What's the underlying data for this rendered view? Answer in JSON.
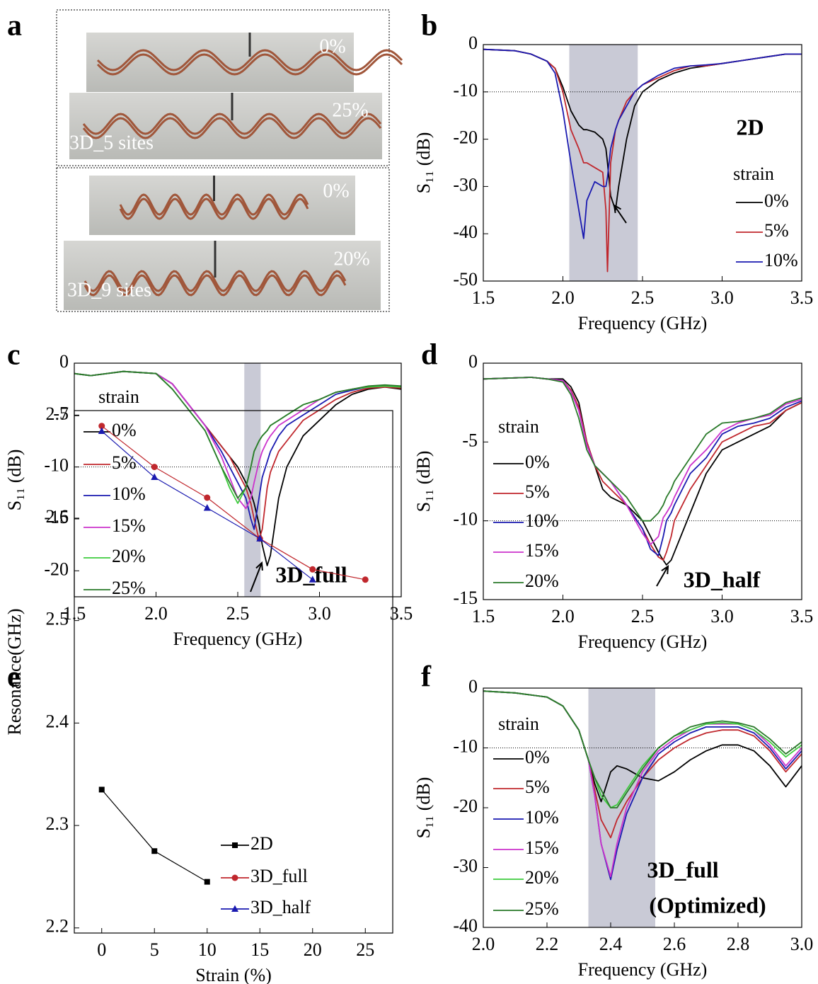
{
  "panel_a": {
    "label": "a",
    "photos": [
      {
        "labels": [
          "0%"
        ]
      },
      {
        "labels": [
          "25%",
          "3D_5 sites"
        ]
      },
      {
        "labels": [
          "0%"
        ]
      },
      {
        "labels": [
          "20%",
          "3D_9 sites"
        ]
      }
    ]
  },
  "chart_data": [
    {
      "type": "line",
      "label": "b",
      "x_label": "Frequency (GHz)",
      "y_label": "S₁₁ (dB)",
      "xlim": [
        1.5,
        3.5
      ],
      "ylim": [
        -50,
        0
      ],
      "xticks": [
        1.5,
        {
          "value": 2,
          "label": "2.0"
        },
        2.5,
        {
          "value": 3,
          "label": "3.0"
        },
        3.5
      ],
      "yticks": [
        0,
        -10,
        -20,
        -30,
        -40,
        -50
      ],
      "highlight_span": [
        2.04,
        2.47
      ],
      "reference_line": -10,
      "annotations": [
        "2D"
      ],
      "legend_title": "strain",
      "legend": "lower right",
      "x": [
        1.5,
        1.7,
        1.8,
        1.9,
        1.95,
        2.0,
        2.05,
        2.1,
        2.13,
        2.15,
        2.2,
        2.25,
        2.27,
        2.28,
        2.3,
        2.33,
        2.35,
        2.4,
        2.45,
        2.5,
        2.6,
        2.7,
        2.8,
        2.9,
        3.0,
        3.1,
        3.2,
        3.3,
        3.4,
        3.5
      ],
      "series": [
        {
          "name": "0%",
          "color": "#000000",
          "values": [
            -1,
            -1.3,
            -2,
            -3.5,
            -5,
            -9,
            -14,
            -17,
            -18,
            -18,
            -18.5,
            -20,
            -22,
            -25,
            -32,
            -35,
            -30,
            -20,
            -13,
            -10,
            -7.5,
            -6,
            -5,
            -4.5,
            -4,
            -3.5,
            -3,
            -2.5,
            -2,
            -2
          ]
        },
        {
          "name": "5%",
          "color": "#c0272d",
          "values": [
            -1,
            -1.3,
            -2,
            -3.5,
            -5,
            -10,
            -18,
            -22,
            -25,
            -25,
            -26,
            -27,
            -35,
            -48,
            -25,
            -18,
            -16,
            -12,
            -10,
            -8.5,
            -7,
            -5.5,
            -4.5,
            -4.5,
            -4,
            -3.5,
            -3,
            -2.5,
            -2,
            -2
          ]
        },
        {
          "name": "10%",
          "color": "#1a1ab0",
          "values": [
            -1,
            -1.3,
            -2,
            -3.5,
            -6,
            -14,
            -25,
            -35,
            -41,
            -33,
            -29,
            -30,
            -30,
            -28,
            -22,
            -18,
            -16,
            -13,
            -10,
            -8.5,
            -6.5,
            -5,
            -4.5,
            -4.3,
            -4,
            -3.5,
            -3,
            -2.5,
            -2,
            -2
          ]
        }
      ]
    },
    {
      "type": "line",
      "label": "c",
      "x_label": "Frequency (GHz)",
      "y_label": "S₁₁ (dB)",
      "xlim": [
        1.5,
        3.5
      ],
      "ylim": [
        -22.5,
        0
      ],
      "xticks": [
        1.5,
        {
          "value": 2,
          "label": "2.0"
        },
        2.5,
        {
          "value": 3,
          "label": "3.0"
        },
        3.5
      ],
      "yticks": [
        0,
        -5,
        -10,
        -15,
        -20
      ],
      "highlight_span": [
        2.54,
        2.64
      ],
      "reference_line": -10,
      "annotations": [
        "3D_full"
      ],
      "legend_title": "strain",
      "legend": "upper left",
      "x": [
        1.5,
        1.6,
        1.8,
        2.0,
        2.1,
        2.2,
        2.3,
        2.4,
        2.45,
        2.5,
        2.55,
        2.58,
        2.6,
        2.63,
        2.65,
        2.68,
        2.7,
        2.75,
        2.8,
        2.9,
        3.0,
        3.1,
        3.2,
        3.3,
        3.4,
        3.5
      ],
      "series": [
        {
          "name": "0%",
          "color": "#000000",
          "values": [
            -1,
            -1.2,
            -0.8,
            -1,
            -2,
            -4,
            -6,
            -8,
            -9,
            -10,
            -11.5,
            -12.5,
            -13.5,
            -15.5,
            -17.5,
            -19.5,
            -18.5,
            -13,
            -10,
            -7,
            -5.5,
            -4,
            -3,
            -2.5,
            -2.3,
            -2.5
          ]
        },
        {
          "name": "5%",
          "color": "#c0272d",
          "values": [
            -1,
            -1.2,
            -0.8,
            -1,
            -2,
            -4,
            -6,
            -8,
            -9,
            -10.5,
            -12,
            -13.5,
            -15,
            -17,
            -16,
            -12,
            -10.5,
            -8.5,
            -7.5,
            -5.5,
            -4.5,
            -3.5,
            -2.8,
            -2.4,
            -2.3,
            -2.4
          ]
        },
        {
          "name": "10%",
          "color": "#1a1ab0",
          "values": [
            -1,
            -1.2,
            -0.8,
            -1,
            -2,
            -4,
            -6,
            -8.5,
            -10,
            -11.5,
            -13,
            -15,
            -16,
            -13,
            -11,
            -9.5,
            -8.5,
            -7,
            -6,
            -5,
            -4,
            -3,
            -2.6,
            -2.3,
            -2.2,
            -2.3
          ]
        },
        {
          "name": "15%",
          "color": "#cc33cc",
          "values": [
            -1,
            -1.2,
            -0.8,
            -1,
            -2,
            -4,
            -6,
            -9,
            -11,
            -13,
            -14,
            -13,
            -11.5,
            -9.5,
            -8.5,
            -7.5,
            -7,
            -6,
            -5.5,
            -4.5,
            -3.5,
            -2.8,
            -2.5,
            -2.3,
            -2.2,
            -2.3
          ]
        },
        {
          "name": "20%",
          "color": "#3dcc3d",
          "values": [
            -1,
            -1.2,
            -0.8,
            -1,
            -2.5,
            -4.5,
            -6.5,
            -10,
            -12,
            -13.5,
            -12,
            -10,
            -8.5,
            -7.5,
            -7,
            -6.5,
            -6,
            -5.5,
            -5,
            -4,
            -3.5,
            -2.8,
            -2.5,
            -2.3,
            -2.2,
            -2.3
          ]
        },
        {
          "name": "25%",
          "color": "#2a7a2a",
          "values": [
            -1,
            -1.2,
            -0.8,
            -1,
            -2.5,
            -4.5,
            -6.5,
            -10,
            -11.5,
            -13,
            -12,
            -10,
            -8.5,
            -7.5,
            -7,
            -6.5,
            -6,
            -5.5,
            -5,
            -4,
            -3.5,
            -2.8,
            -2.5,
            -2.2,
            -2.1,
            -2.2
          ]
        }
      ]
    },
    {
      "type": "line",
      "label": "d",
      "x_label": "Frequency (GHz)",
      "y_label": "S₁₁ (dB)",
      "xlim": [
        1.5,
        3.5
      ],
      "ylim": [
        -15,
        0
      ],
      "xticks": [
        1.5,
        {
          "value": 2,
          "label": "2.0"
        },
        2.5,
        {
          "value": 3,
          "label": "3.0"
        },
        3.5
      ],
      "yticks": [
        0,
        -5,
        -10,
        -15
      ],
      "reference_line": -10,
      "annotations": [
        "3D_half"
      ],
      "legend_title": "strain",
      "legend": "left",
      "x": [
        1.5,
        1.8,
        1.9,
        2.0,
        2.05,
        2.1,
        2.15,
        2.2,
        2.25,
        2.3,
        2.4,
        2.5,
        2.55,
        2.6,
        2.63,
        2.65,
        2.68,
        2.7,
        2.8,
        2.9,
        3.0,
        3.1,
        3.2,
        3.3,
        3.4,
        3.5
      ],
      "series": [
        {
          "name": "0%",
          "color": "#000000",
          "values": [
            -1,
            -0.9,
            -1,
            -1,
            -1.5,
            -2.5,
            -5,
            -6.5,
            -8,
            -8.5,
            -9,
            -10,
            -11,
            -12,
            -12.5,
            -12.8,
            -12.5,
            -12,
            -9.5,
            -7,
            -5.5,
            -5,
            -4.5,
            -4,
            -3,
            -2.5
          ]
        },
        {
          "name": "5%",
          "color": "#c0272d",
          "values": [
            -1,
            -0.9,
            -1,
            -1.1,
            -1.7,
            -2.8,
            -5,
            -6.5,
            -7.5,
            -8,
            -9,
            -10.5,
            -11.5,
            -12.3,
            -12.5,
            -12,
            -11,
            -10,
            -8,
            -6.5,
            -5,
            -4.5,
            -4,
            -3.8,
            -3,
            -2.5
          ]
        },
        {
          "name": "10%",
          "color": "#1a1ab0",
          "values": [
            -1,
            -0.9,
            -1,
            -1.1,
            -1.8,
            -3,
            -5.2,
            -6.5,
            -7,
            -7.5,
            -9,
            -10.5,
            -11.8,
            -12.2,
            -11,
            -10,
            -9.5,
            -9,
            -7,
            -6,
            -4.5,
            -4,
            -3.8,
            -3.5,
            -2.8,
            -2.4
          ]
        },
        {
          "name": "15%",
          "color": "#cc33cc",
          "values": [
            -1,
            -0.9,
            -1,
            -1.1,
            -1.8,
            -3,
            -5.2,
            -6.5,
            -7,
            -7.5,
            -9,
            -10.8,
            -11.5,
            -11,
            -9.8,
            -9.5,
            -9,
            -8.5,
            -6.5,
            -5.5,
            -4.3,
            -3.8,
            -3.5,
            -3.3,
            -2.6,
            -2.3
          ]
        },
        {
          "name": "20%",
          "color": "#2a7a2a",
          "values": [
            -1,
            -0.9,
            -1,
            -1.2,
            -2,
            -3.5,
            -5.5,
            -6.5,
            -7,
            -7.5,
            -8.5,
            -10,
            -10,
            -9.5,
            -9,
            -8.5,
            -8,
            -7.5,
            -6,
            -4.5,
            -3.8,
            -3.7,
            -3.5,
            -3.2,
            -2.5,
            -2.2
          ]
        }
      ]
    },
    {
      "type": "line",
      "label": "e",
      "x_label": "Strain (%)",
      "y_label": "Resonance(GHz)",
      "xlim": [
        -2.6,
        27.6
      ],
      "ylim": [
        2.195,
        2.705
      ],
      "xticks": [
        0,
        5,
        10,
        15,
        20,
        25
      ],
      "yticks": [
        2.2,
        2.3,
        2.4,
        2.5,
        2.6,
        2.7
      ],
      "legend": "lower center",
      "markers": true,
      "x": [
        0,
        5,
        10,
        15,
        20,
        25
      ],
      "series": [
        {
          "name": "2D",
          "color": "#000000",
          "marker": "square",
          "values": [
            2.335,
            2.275,
            2.245,
            null,
            null,
            null
          ]
        },
        {
          "name": "3D_full",
          "color": "#c0272d",
          "marker": "circle",
          "values": [
            2.69,
            2.65,
            2.62,
            2.58,
            2.55,
            2.54
          ]
        },
        {
          "name": "3D_half",
          "color": "#1a1ab0",
          "marker": "triangle",
          "values": [
            2.685,
            2.64,
            2.61,
            2.58,
            2.54,
            null
          ]
        }
      ]
    },
    {
      "type": "line",
      "label": "f",
      "x_label": "Frequency (GHz)",
      "y_label": "S₁₁ (dB)",
      "xlim": [
        2,
        3
      ],
      "ylim": [
        -40,
        0
      ],
      "xticks": [
        {
          "value": 2,
          "label": "2.0"
        },
        2.2,
        2.4,
        2.6,
        2.8,
        {
          "value": 3,
          "label": "3.0"
        }
      ],
      "yticks": [
        0,
        -10,
        -20,
        -30,
        -40
      ],
      "highlight_span": [
        2.33,
        2.54
      ],
      "reference_line": -10,
      "annotations": [
        "3D_full",
        "(Optimized)"
      ],
      "legend_title": "strain",
      "legend": "left",
      "x": [
        2.0,
        2.1,
        2.2,
        2.25,
        2.3,
        2.33,
        2.35,
        2.37,
        2.4,
        2.42,
        2.45,
        2.5,
        2.55,
        2.6,
        2.65,
        2.7,
        2.75,
        2.8,
        2.85,
        2.9,
        2.95,
        3.0
      ],
      "series": [
        {
          "name": "0%",
          "color": "#000000",
          "values": [
            -0.5,
            -0.8,
            -1.5,
            -3,
            -7,
            -12,
            -16,
            -19,
            -14,
            -13,
            -13.5,
            -15,
            -15.5,
            -14,
            -12,
            -10.5,
            -9.5,
            -9.5,
            -10.5,
            -13,
            -16.5,
            -13
          ]
        },
        {
          "name": "5%",
          "color": "#c0272d",
          "values": [
            -0.5,
            -0.8,
            -1.5,
            -3,
            -7,
            -12,
            -17,
            -22,
            -25,
            -22,
            -19,
            -15,
            -12,
            -10,
            -8.5,
            -7.5,
            -7,
            -7,
            -8,
            -10.5,
            -14,
            -11
          ]
        },
        {
          "name": "10%",
          "color": "#1a1ab0",
          "values": [
            -0.5,
            -0.8,
            -1.5,
            -3,
            -7,
            -12,
            -18,
            -26,
            -32,
            -27,
            -21,
            -15,
            -11,
            -9,
            -7.5,
            -6.5,
            -6.5,
            -6.5,
            -7.5,
            -10,
            -13.5,
            -10.5
          ]
        },
        {
          "name": "15%",
          "color": "#cc33cc",
          "values": [
            -0.5,
            -0.8,
            -1.5,
            -3,
            -7,
            -12,
            -18,
            -26,
            -31.5,
            -26,
            -20,
            -14,
            -10.5,
            -8.5,
            -7,
            -6,
            -6,
            -6,
            -7,
            -9.5,
            -13,
            -10
          ]
        },
        {
          "name": "20%",
          "color": "#3dcc3d",
          "values": [
            -0.5,
            -0.8,
            -1.5,
            -3,
            -7,
            -12,
            -15,
            -18,
            -20,
            -19.5,
            -17,
            -13,
            -10,
            -8,
            -7,
            -6,
            -5.8,
            -6,
            -7,
            -9,
            -11.5,
            -9.5
          ]
        },
        {
          "name": "25%",
          "color": "#2a7a2a",
          "values": [
            -0.5,
            -0.8,
            -1.5,
            -3,
            -7,
            -12,
            -15,
            -17,
            -20,
            -20,
            -17.5,
            -13.5,
            -10,
            -8,
            -6.5,
            -5.8,
            -5.5,
            -5.8,
            -6.5,
            -8.5,
            -11,
            -9
          ]
        }
      ]
    }
  ]
}
